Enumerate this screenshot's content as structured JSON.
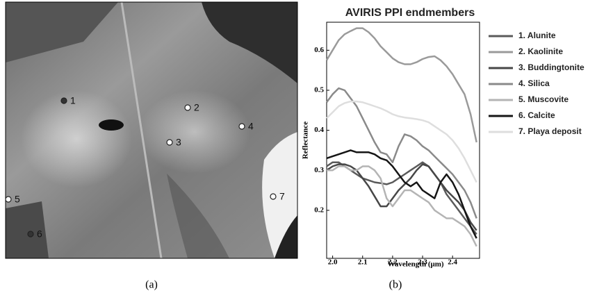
{
  "panel_a": {
    "points": [
      "1",
      "2",
      "3",
      "4",
      "5",
      "6",
      "7"
    ],
    "caption": "(a)"
  },
  "panel_b": {
    "caption": "(b)"
  },
  "chart_data": {
    "type": "line",
    "title": "AVIRIS PPI endmembers",
    "x_label": "Wavelength (μm)",
    "y_label": "Reflectance",
    "x": [
      1.98,
      2.0,
      2.02,
      2.04,
      2.06,
      2.08,
      2.1,
      2.12,
      2.14,
      2.16,
      2.18,
      2.2,
      2.22,
      2.24,
      2.26,
      2.28,
      2.3,
      2.32,
      2.34,
      2.36,
      2.38,
      2.4,
      2.42,
      2.44,
      2.46,
      2.48
    ],
    "xlim": [
      1.98,
      2.49
    ],
    "ylim": [
      0.08,
      0.67
    ],
    "xticks": [
      {
        "value": 2.0,
        "label": "2.0"
      },
      2.1,
      2.2,
      2.3,
      2.4
    ],
    "yticks": [
      0.2,
      0.3,
      0.4,
      0.5,
      0.6
    ],
    "grid": false,
    "legend": "outside right",
    "series": [
      {
        "name": "1. Alunite",
        "color": "#5a5a5a",
        "values": [
          0.31,
          0.32,
          0.32,
          0.31,
          0.3,
          0.29,
          0.28,
          0.275,
          0.27,
          0.268,
          0.265,
          0.27,
          0.28,
          0.29,
          0.3,
          0.31,
          0.32,
          0.31,
          0.29,
          0.27,
          0.24,
          0.22,
          0.2,
          0.18,
          0.16,
          0.14
        ]
      },
      {
        "name": "2. Kaolinite",
        "color": "#9a9a9a",
        "values": [
          0.575,
          0.6,
          0.625,
          0.64,
          0.648,
          0.655,
          0.655,
          0.645,
          0.63,
          0.61,
          0.595,
          0.58,
          0.57,
          0.565,
          0.565,
          0.57,
          0.578,
          0.583,
          0.585,
          0.575,
          0.56,
          0.54,
          0.515,
          0.49,
          0.44,
          0.37
        ]
      },
      {
        "name": "3. Buddingtonite",
        "color": "#474747",
        "values": [
          0.3,
          0.31,
          0.315,
          0.315,
          0.31,
          0.3,
          0.28,
          0.26,
          0.235,
          0.21,
          0.21,
          0.23,
          0.25,
          0.265,
          0.28,
          0.3,
          0.315,
          0.31,
          0.29,
          0.27,
          0.25,
          0.235,
          0.22,
          0.2,
          0.17,
          0.15
        ]
      },
      {
        "name": "4. Silica",
        "color": "#8a8a8a",
        "values": [
          0.47,
          0.49,
          0.505,
          0.5,
          0.48,
          0.46,
          0.43,
          0.4,
          0.37,
          0.345,
          0.34,
          0.32,
          0.36,
          0.39,
          0.385,
          0.375,
          0.36,
          0.35,
          0.335,
          0.32,
          0.305,
          0.29,
          0.27,
          0.25,
          0.22,
          0.18
        ]
      },
      {
        "name": "5. Muscovite",
        "color": "#b4b4b4",
        "values": [
          0.3,
          0.3,
          0.31,
          0.31,
          0.3,
          0.3,
          0.31,
          0.31,
          0.3,
          0.28,
          0.23,
          0.21,
          0.23,
          0.25,
          0.25,
          0.24,
          0.23,
          0.22,
          0.2,
          0.19,
          0.18,
          0.18,
          0.17,
          0.16,
          0.14,
          0.11
        ]
      },
      {
        "name": "6. Calcite",
        "color": "#151515",
        "values": [
          0.33,
          0.335,
          0.34,
          0.345,
          0.35,
          0.345,
          0.345,
          0.345,
          0.34,
          0.33,
          0.325,
          0.31,
          0.29,
          0.27,
          0.26,
          0.27,
          0.25,
          0.24,
          0.23,
          0.27,
          0.29,
          0.27,
          0.24,
          0.2,
          0.16,
          0.13
        ]
      },
      {
        "name": "7. Playa deposit",
        "color": "#dedede",
        "values": [
          0.43,
          0.445,
          0.46,
          0.468,
          0.472,
          0.472,
          0.47,
          0.465,
          0.46,
          0.455,
          0.448,
          0.44,
          0.435,
          0.432,
          0.43,
          0.428,
          0.425,
          0.42,
          0.41,
          0.4,
          0.39,
          0.375,
          0.355,
          0.33,
          0.3,
          0.27
        ]
      }
    ]
  }
}
